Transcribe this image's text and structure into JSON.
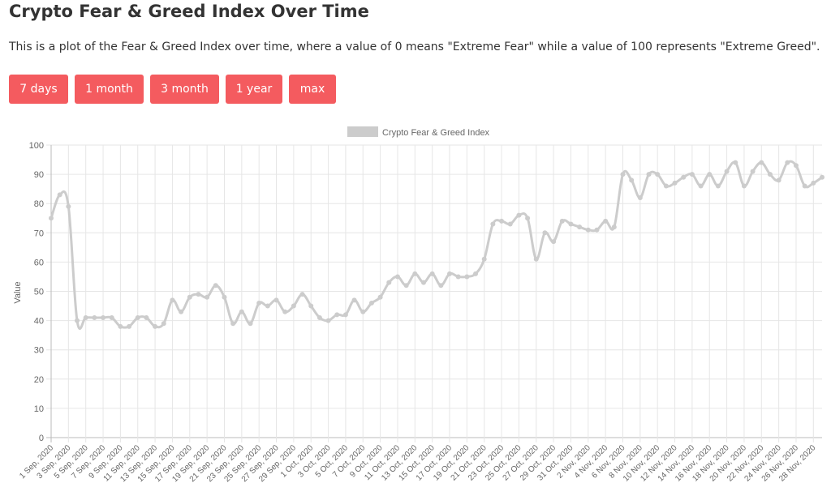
{
  "header": {
    "title": "Crypto Fear & Greed Index Over Time",
    "description": "This is a plot of the Fear & Greed Index over time, where a value of 0 means \"Extreme Fear\" while a value of 100 represents \"Extreme Greed\"."
  },
  "range_buttons": [
    {
      "label": "7 days"
    },
    {
      "label": "1 month"
    },
    {
      "label": "3 month"
    },
    {
      "label": "1 year"
    },
    {
      "label": "max"
    }
  ],
  "colors": {
    "button_bg": "#f45b5f",
    "button_text": "#ffffff",
    "series_line": "#cccccc",
    "grid": "#e6e6e6"
  },
  "chart_data": {
    "type": "line",
    "title": "",
    "legend": {
      "position": "top",
      "entries": [
        "Crypto Fear & Greed Index"
      ]
    },
    "ylabel": "Value",
    "xlabel": "",
    "ylim": [
      0,
      100
    ],
    "yticks": [
      0,
      10,
      20,
      30,
      40,
      50,
      60,
      70,
      80,
      90,
      100
    ],
    "grid": true,
    "x": [
      "1 Sep, 2020",
      "2 Sep, 2020",
      "3 Sep, 2020",
      "4 Sep, 2020",
      "5 Sep, 2020",
      "6 Sep, 2020",
      "7 Sep, 2020",
      "8 Sep, 2020",
      "9 Sep, 2020",
      "10 Sep, 2020",
      "11 Sep, 2020",
      "12 Sep, 2020",
      "13 Sep, 2020",
      "14 Sep, 2020",
      "15 Sep, 2020",
      "16 Sep, 2020",
      "17 Sep, 2020",
      "18 Sep, 2020",
      "19 Sep, 2020",
      "20 Sep, 2020",
      "21 Sep, 2020",
      "22 Sep, 2020",
      "23 Sep, 2020",
      "24 Sep, 2020",
      "25 Sep, 2020",
      "26 Sep, 2020",
      "27 Sep, 2020",
      "28 Sep, 2020",
      "29 Sep, 2020",
      "30 Sep, 2020",
      "1 Oct, 2020",
      "2 Oct, 2020",
      "3 Oct, 2020",
      "4 Oct, 2020",
      "5 Oct, 2020",
      "6 Oct, 2020",
      "7 Oct, 2020",
      "8 Oct, 2020",
      "9 Oct, 2020",
      "10 Oct, 2020",
      "11 Oct, 2020",
      "12 Oct, 2020",
      "13 Oct, 2020",
      "14 Oct, 2020",
      "15 Oct, 2020",
      "16 Oct, 2020",
      "17 Oct, 2020",
      "18 Oct, 2020",
      "19 Oct, 2020",
      "20 Oct, 2020",
      "21 Oct, 2020",
      "22 Oct, 2020",
      "23 Oct, 2020",
      "24 Oct, 2020",
      "25 Oct, 2020",
      "26 Oct, 2020",
      "27 Oct, 2020",
      "28 Oct, 2020",
      "29 Oct, 2020",
      "30 Oct, 2020",
      "31 Oct, 2020",
      "1 Nov, 2020",
      "2 Nov, 2020",
      "3 Nov, 2020",
      "4 Nov, 2020",
      "5 Nov, 2020",
      "6 Nov, 2020",
      "7 Nov, 2020",
      "8 Nov, 2020",
      "9 Nov, 2020",
      "10 Nov, 2020",
      "11 Nov, 2020",
      "12 Nov, 2020",
      "13 Nov, 2020",
      "14 Nov, 2020",
      "15 Nov, 2020",
      "16 Nov, 2020",
      "17 Nov, 2020",
      "18 Nov, 2020",
      "19 Nov, 2020",
      "20 Nov, 2020",
      "21 Nov, 2020",
      "22 Nov, 2020",
      "23 Nov, 2020",
      "24 Nov, 2020",
      "25 Nov, 2020",
      "26 Nov, 2020",
      "27 Nov, 2020",
      "28 Nov, 2020",
      "29 Nov, 2020"
    ],
    "xtick_labels": [
      "1 Sep, 2020",
      "3 Sep, 2020",
      "5 Sep, 2020",
      "7 Sep, 2020",
      "9 Sep, 2020",
      "11 Sep, 2020",
      "13 Sep, 2020",
      "15 Sep, 2020",
      "17 Sep, 2020",
      "19 Sep, 2020",
      "21 Sep, 2020",
      "23 Sep, 2020",
      "25 Sep, 2020",
      "27 Sep, 2020",
      "29 Sep, 2020",
      "1 Oct, 2020",
      "3 Oct, 2020",
      "5 Oct, 2020",
      "7 Oct, 2020",
      "9 Oct, 2020",
      "11 Oct, 2020",
      "13 Oct, 2020",
      "15 Oct, 2020",
      "17 Oct, 2020",
      "19 Oct, 2020",
      "21 Oct, 2020",
      "23 Oct, 2020",
      "25 Oct, 2020",
      "27 Oct, 2020",
      "29 Oct, 2020",
      "31 Oct, 2020",
      "2 Nov, 2020",
      "4 Nov, 2020",
      "6 Nov, 2020",
      "8 Nov, 2020",
      "10 Nov, 2020",
      "12 Nov, 2020",
      "14 Nov, 2020",
      "16 Nov, 2020",
      "18 Nov, 2020",
      "20 Nov, 2020",
      "22 Nov, 2020",
      "24 Nov, 2020",
      "26 Nov, 2020",
      "28 Nov, 2020"
    ],
    "series": [
      {
        "name": "Crypto Fear & Greed Index",
        "values": [
          75,
          83,
          79,
          40,
          41,
          41,
          41,
          41,
          38,
          38,
          41,
          41,
          38,
          39,
          47,
          43,
          48,
          49,
          48,
          52,
          48,
          39,
          43,
          39,
          46,
          45,
          47,
          43,
          45,
          49,
          45,
          41,
          40,
          42,
          42,
          47,
          43,
          46,
          48,
          53,
          55,
          52,
          56,
          53,
          56,
          52,
          56,
          55,
          55,
          56,
          61,
          73,
          74,
          73,
          76,
          75,
          61,
          70,
          67,
          74,
          73,
          72,
          71,
          71,
          74,
          72,
          90,
          88,
          82,
          90,
          90,
          86,
          87,
          89,
          90,
          86,
          90,
          86,
          91,
          94,
          86,
          91,
          94,
          90,
          88,
          94,
          93,
          86,
          87,
          89
        ]
      }
    ]
  }
}
